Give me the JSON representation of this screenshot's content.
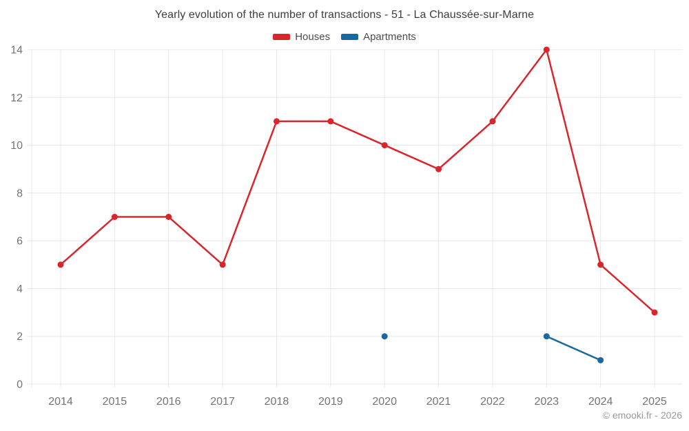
{
  "title": "Yearly evolution of the number of transactions - 51 - La Chaussée-sur-Marne",
  "legend": {
    "items": [
      {
        "label": "Houses",
        "color": "#d8262c"
      },
      {
        "label": "Apartments",
        "color": "#17699f"
      }
    ]
  },
  "watermark": "© emooki.fr - 2026",
  "colors": {
    "background": "#ffffff",
    "grid": "#e8e8e8",
    "axis_text": "#747474",
    "title_text": "#3d3d3d",
    "legend_text": "#4c4c4c",
    "watermark_text": "#9a9a9a",
    "houses": "#d8262c",
    "apartments": "#17699f"
  },
  "chart_data": {
    "type": "line",
    "title": "Yearly evolution of the number of transactions - 51 - La Chaussée-sur-Marne",
    "x": [
      2014,
      2015,
      2016,
      2017,
      2018,
      2019,
      2020,
      2021,
      2022,
      2023,
      2024,
      2025
    ],
    "series": [
      {
        "name": "Houses",
        "color": "#d8262c",
        "values": [
          5,
          7,
          7,
          5,
          11,
          11,
          10,
          9,
          11,
          14,
          5,
          3
        ]
      },
      {
        "name": "Apartments",
        "color": "#17699f",
        "values": [
          null,
          null,
          null,
          null,
          null,
          null,
          2,
          null,
          null,
          2,
          1,
          null
        ]
      }
    ],
    "xlabel": "",
    "ylabel": "",
    "ylim": [
      0,
      14
    ],
    "yticks": [
      0,
      2,
      4,
      6,
      8,
      10,
      12,
      14
    ],
    "grid": true,
    "legend_position": "top-center",
    "marker": "circle"
  }
}
